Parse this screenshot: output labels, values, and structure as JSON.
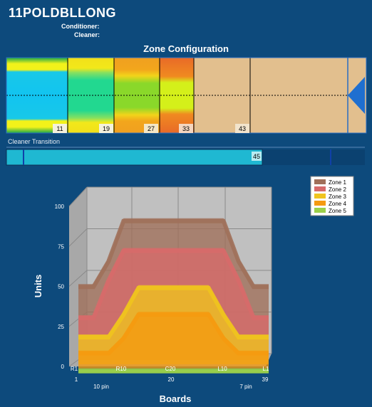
{
  "pattern_name": "11POLDBLLONG",
  "conditioner_label": "Conditioner:",
  "cleaner_label": "Cleaner:",
  "zone_config_title": "Zone Configuration",
  "zone_markers": [
    "11",
    "19",
    "27",
    "33",
    "43"
  ],
  "cleaner_transition_label": "Cleaner Transition",
  "cleaner_transition_value": "45",
  "chart_data": {
    "type": "area",
    "xlabel": "Boards",
    "ylabel": "Units",
    "ylim": [
      0,
      100
    ],
    "y_ticks": [
      "0",
      "25",
      "50",
      "75",
      "100"
    ],
    "x_ticks": [
      "R1",
      "R10",
      "C20",
      "L10",
      "L1"
    ],
    "x_ticks_secondary": [
      "1",
      "20",
      "39"
    ],
    "pin_labels": [
      "10 pin",
      "7 pin"
    ],
    "legend_position": "top-right",
    "x": [
      1,
      4,
      7,
      10,
      13,
      16,
      20,
      24,
      27,
      30,
      33,
      36,
      39
    ],
    "series": [
      {
        "name": "Zone 1",
        "color": "#a0705a",
        "values": [
          48,
          48,
          65,
          92,
          92,
          92,
          92,
          92,
          92,
          92,
          65,
          48,
          48
        ]
      },
      {
        "name": "Zone 2",
        "color": "#d76a6a",
        "values": [
          30,
          30,
          55,
          75,
          75,
          75,
          75,
          75,
          75,
          75,
          55,
          30,
          30
        ]
      },
      {
        "name": "Zone 3",
        "color": "#f0c41e",
        "values": [
          20,
          20,
          20,
          35,
          53,
          53,
          53,
          53,
          53,
          35,
          20,
          20,
          20
        ]
      },
      {
        "name": "Zone 4",
        "color": "#f59a10",
        "values": [
          12,
          12,
          12,
          22,
          38,
          38,
          38,
          38,
          38,
          22,
          12,
          12,
          12
        ]
      },
      {
        "name": "Zone 5",
        "color": "#9bd04a",
        "values": [
          3,
          3,
          3,
          3,
          3,
          3,
          3,
          3,
          3,
          3,
          3,
          3,
          3
        ]
      }
    ]
  }
}
